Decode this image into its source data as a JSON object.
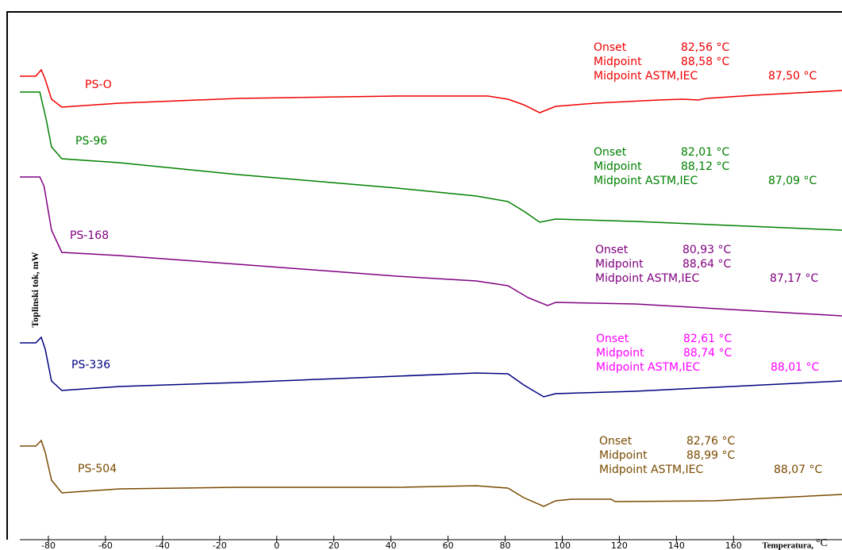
{
  "chart_data": {
    "type": "line",
    "ylabel": "Toplinski tok, mW",
    "xlabel": "Temperatura,",
    "xunit": "°C",
    "xlim": [
      -90,
      198
    ],
    "ylim": [
      0,
      665
    ],
    "xticks": [
      -80,
      -60,
      -40,
      -20,
      0,
      20,
      40,
      60,
      80,
      100,
      120,
      140,
      160
    ],
    "series": [
      {
        "name": "PS-O",
        "color": "#f00000",
        "annotation_color": "#f00000",
        "x": [
          -90,
          -84.4,
          -82.5,
          -81.1,
          -78.9,
          -75.3,
          -55.2,
          -13.5,
          42.1,
          74,
          81,
          86.5,
          92.1,
          97.7,
          111.6,
          133.8,
          142.1,
          147.7,
          150.5,
          167.2,
          198
        ],
        "values": [
          584,
          584,
          592,
          580,
          555,
          545,
          550,
          556,
          559,
          559,
          555,
          548,
          538,
          546,
          550,
          554,
          555,
          554,
          556,
          560,
          566
        ],
        "annotations": [
          {
            "label": "Onset",
            "value": "82,56 °C"
          },
          {
            "label": "Midpoint",
            "value": "88,58 °C"
          },
          {
            "label": "Midpoint ASTM,IEC",
            "value": "87,50 °C"
          }
        ]
      },
      {
        "name": "PS-96",
        "color": "#008000",
        "annotation_color": "#008000",
        "x": [
          -90,
          -83,
          -80.8,
          -78.9,
          -75.3,
          -55.2,
          -13.5,
          42.1,
          69.9,
          81,
          86.5,
          92.1,
          97.7,
          125.5,
          198
        ],
        "values": [
          564,
          564,
          530,
          495,
          480,
          475,
          460,
          443,
          433,
          426,
          414,
          400,
          404,
          401,
          390
        ],
        "annotations": [
          {
            "label": "Onset",
            "value": "82,01 °C"
          },
          {
            "label": "Midpoint",
            "value": "88,12 °C"
          },
          {
            "label": "Midpoint ASTM,IEC",
            "value": "87,09 °C"
          }
        ]
      },
      {
        "name": "PS-168",
        "color": "#800080",
        "annotation_color": "#800080",
        "x": [
          -90,
          -83,
          -81.5,
          -78.9,
          -75.3,
          -55.2,
          -13.5,
          42.1,
          69.9,
          81,
          88,
          94.9,
          97.7,
          125.5,
          198
        ],
        "values": [
          457,
          457,
          445,
          390,
          362,
          358,
          347,
          332,
          326,
          320,
          305,
          295,
          299,
          297,
          282
        ],
        "annotations": [
          {
            "label": "Onset",
            "value": "80,93 °C"
          },
          {
            "label": "Midpoint",
            "value": "88,64 °C"
          },
          {
            "label": "Midpoint ASTM,IEC",
            "value": "87,17 °C"
          }
        ]
      },
      {
        "name": "PS-336",
        "color": "#000080",
        "annotation_color": "#ff00ff",
        "x": [
          -90,
          -84.4,
          -82.5,
          -81.1,
          -78.9,
          -75.3,
          -55.2,
          -13.5,
          42.1,
          69.9,
          81,
          86.5,
          93.5,
          97.7,
          125.5,
          198
        ],
        "values": [
          248,
          248,
          255,
          240,
          200,
          188,
          193,
          198,
          206,
          210,
          209,
          195,
          180,
          184,
          187,
          200
        ],
        "annotations": [
          {
            "label": "Onset",
            "value": "82,61 °C"
          },
          {
            "label": "Midpoint",
            "value": "88,74 °C"
          },
          {
            "label": "Midpoint ASTM,IEC",
            "value": "88,01 °C"
          }
        ]
      },
      {
        "name": "PS-504",
        "color": "#7a4a00",
        "annotation_color": "#7a4a00",
        "x": [
          -90,
          -84.4,
          -82.5,
          -81.1,
          -78.9,
          -75.3,
          -55.2,
          -13.5,
          42.1,
          69.9,
          81,
          86.5,
          93.5,
          97.7,
          103.2,
          117.1,
          118.5,
          153.3,
          198
        ],
        "values": [
          118,
          118,
          125,
          110,
          75,
          59,
          64,
          66,
          66,
          68,
          65,
          53,
          42,
          49,
          51,
          51,
          48,
          49,
          57
        ],
        "annotations": [
          {
            "label": "Onset",
            "value": "82,76 °C"
          },
          {
            "label": "Midpoint",
            "value": "88,99 °C"
          },
          {
            "label": "Midpoint ASTM,IEC",
            "value": "88,07 °C"
          }
        ]
      }
    ]
  }
}
